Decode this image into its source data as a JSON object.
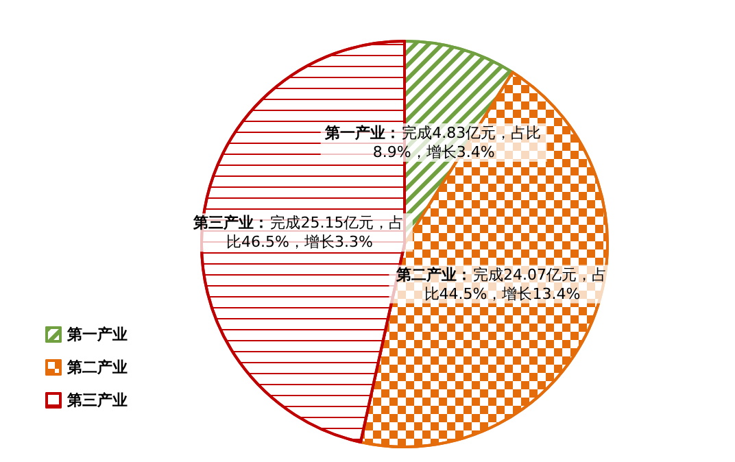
{
  "chart_data": {
    "type": "pie",
    "categories": [
      "第一产业",
      "第二产业",
      "第三产业"
    ],
    "values": [
      4.83,
      24.07,
      25.15
    ],
    "colors": [
      "#70a040",
      "#e46c0a",
      "#c00000"
    ],
    "value_labels": [
      "第一产业：完成4.83亿元，占比8.9%，增长3.4%",
      "第二产业：完成24.07亿元，占比44.5%，增长13.4%",
      "第三产业：完成25.15亿元，占比46.5%，增长3.3%"
    ],
    "legend": "left"
  }
}
